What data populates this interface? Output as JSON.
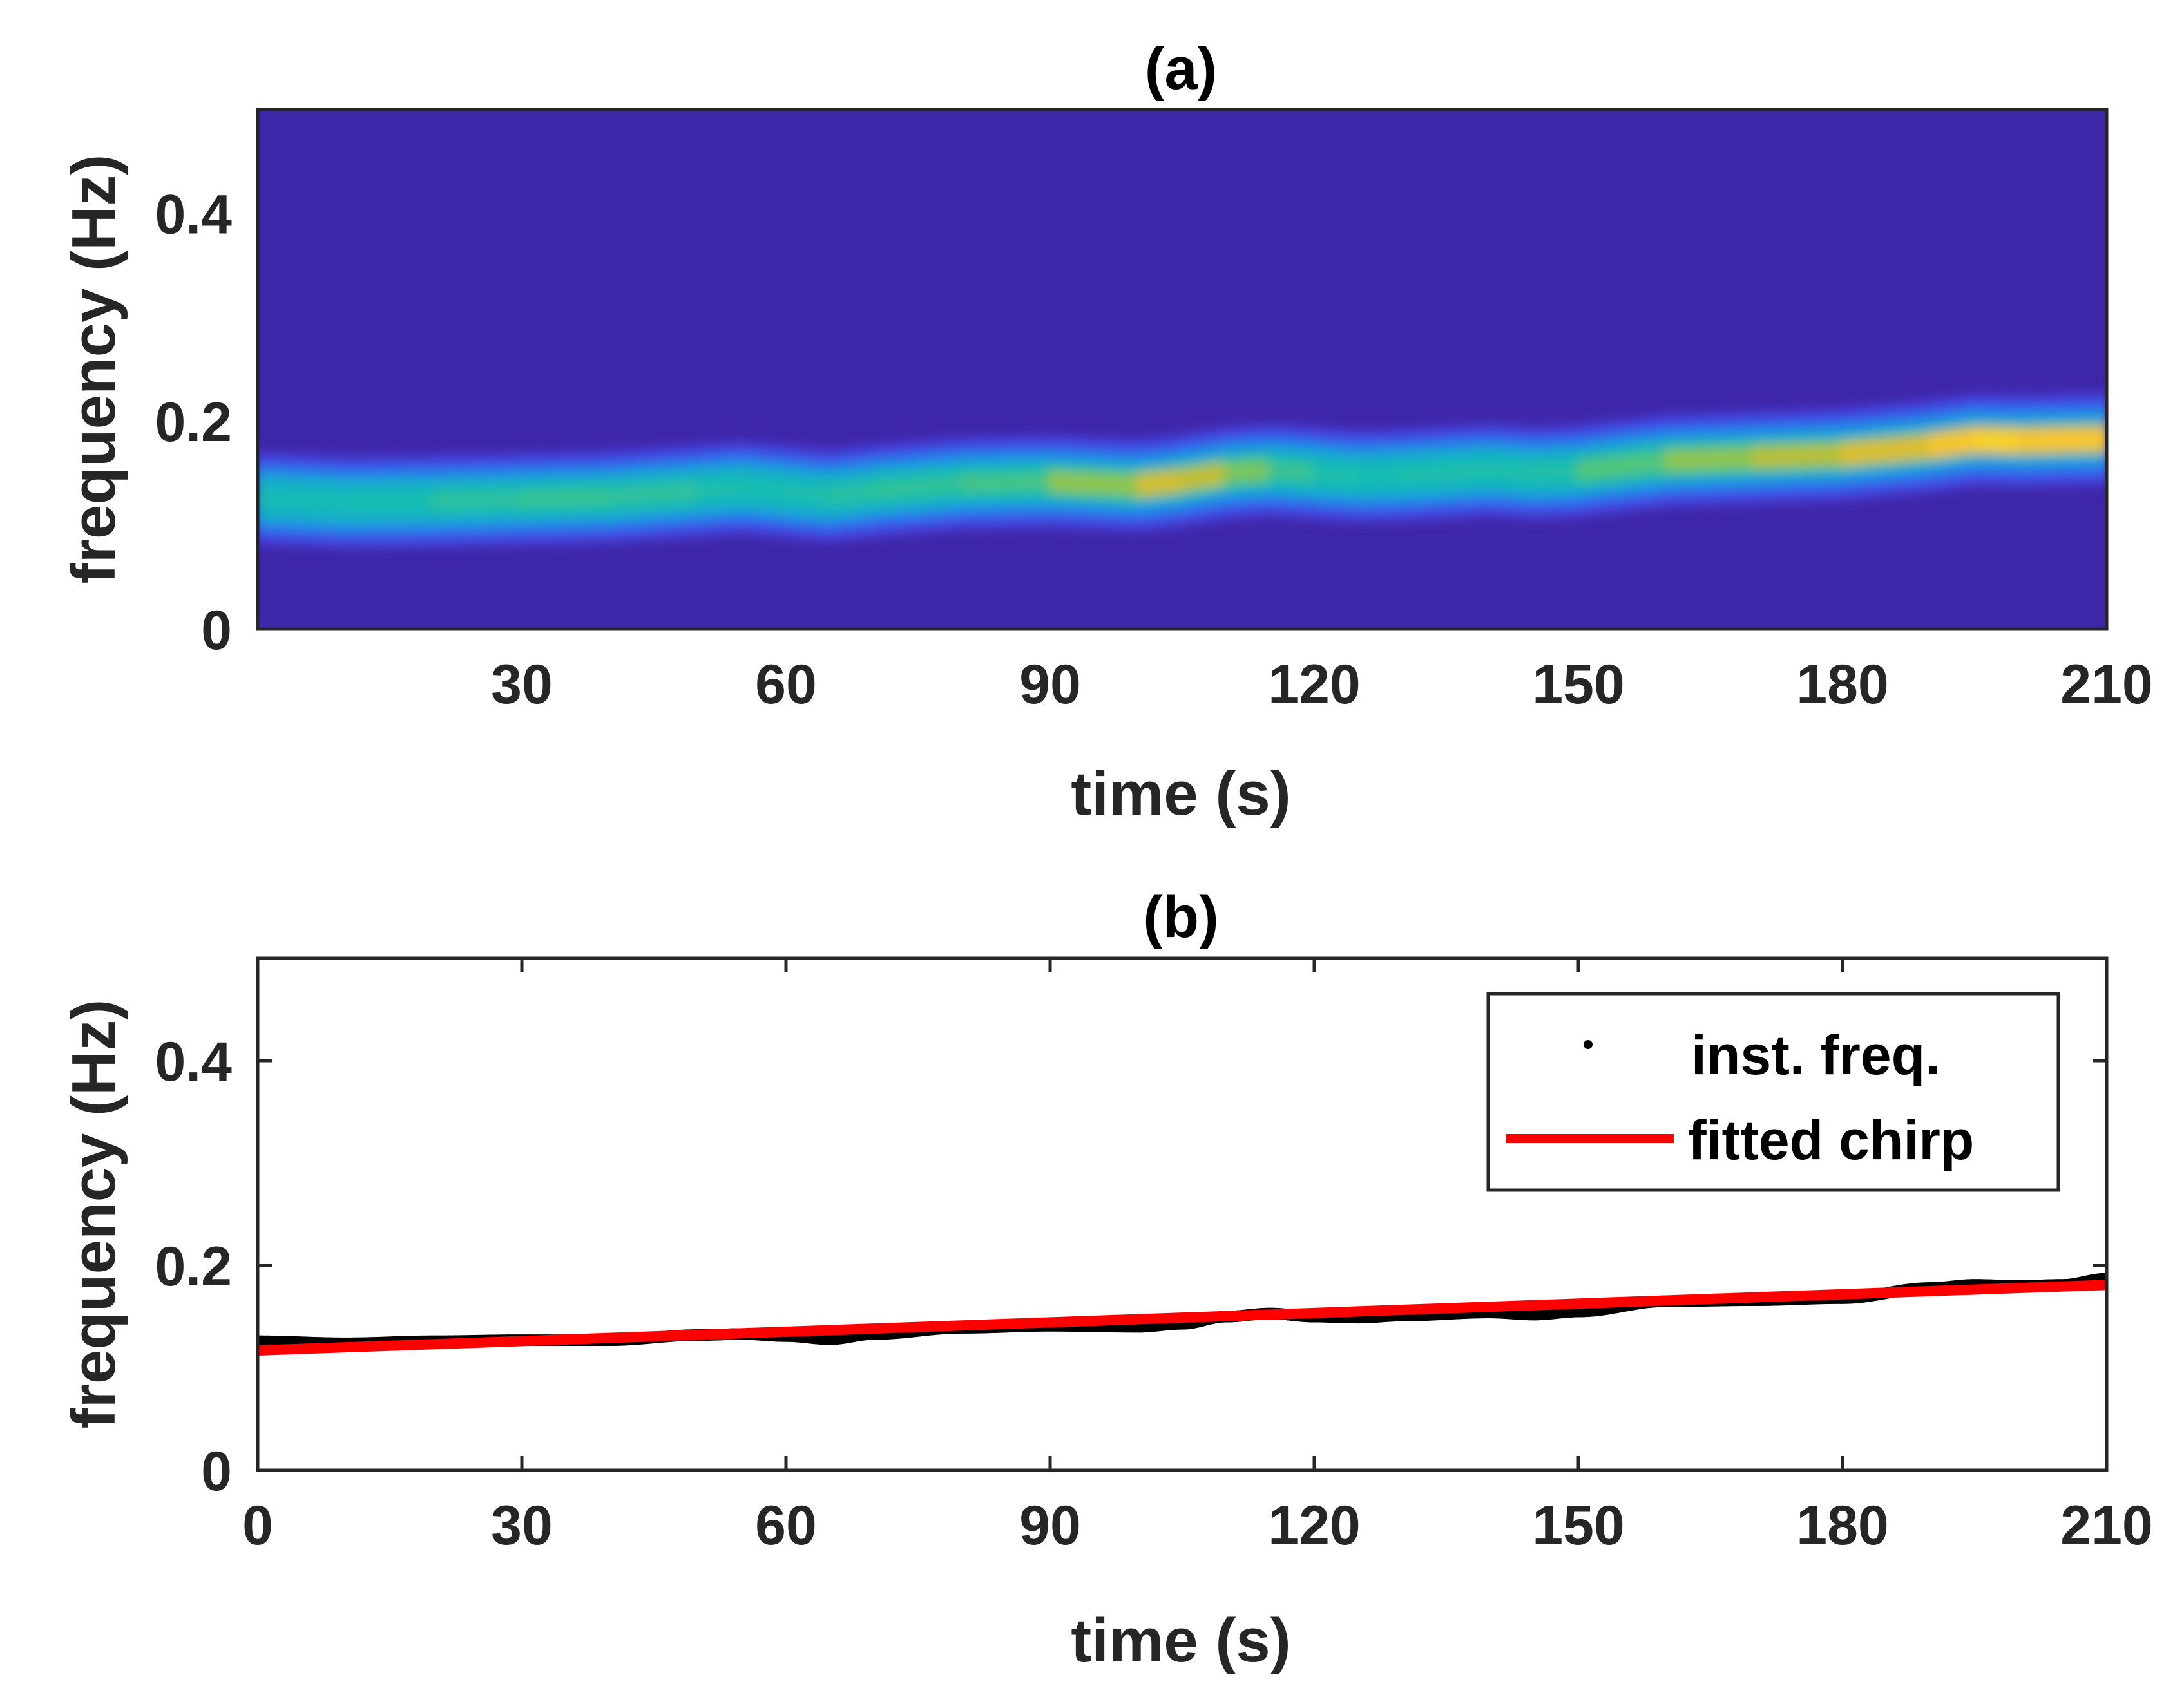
{
  "chart_data": [
    {
      "type": "heatmap",
      "title": "(a)",
      "xlabel": "time (s)",
      "ylabel": "frequency (Hz)",
      "xlim": [
        0,
        210
      ],
      "ylim": [
        0,
        0.5
      ],
      "xticks": [
        "30",
        "60",
        "90",
        "120",
        "150",
        "180",
        "210"
      ],
      "xtick_values": [
        30,
        60,
        90,
        120,
        150,
        180,
        210
      ],
      "yticks": [
        "0",
        "0.2",
        "0.4"
      ],
      "ytick_values": [
        0,
        0.2,
        0.4
      ],
      "colormap": "parula",
      "ridge": {
        "t": [
          0,
          10,
          20,
          30,
          40,
          50,
          55,
          60,
          65,
          70,
          80,
          90,
          100,
          105,
          110,
          115,
          120,
          125,
          130,
          140,
          145,
          150,
          160,
          170,
          180,
          190,
          195,
          200,
          210
        ],
        "freq": [
          0.126,
          0.122,
          0.123,
          0.125,
          0.127,
          0.133,
          0.136,
          0.132,
          0.128,
          0.133,
          0.14,
          0.142,
          0.138,
          0.143,
          0.15,
          0.153,
          0.15,
          0.147,
          0.148,
          0.153,
          0.15,
          0.152,
          0.162,
          0.165,
          0.168,
          0.176,
          0.182,
          0.181,
          0.183
        ],
        "intensity": [
          0.5,
          0.48,
          0.52,
          0.55,
          0.56,
          0.52,
          0.5,
          0.5,
          0.52,
          0.54,
          0.55,
          0.6,
          0.78,
          0.82,
          0.72,
          0.6,
          0.52,
          0.5,
          0.5,
          0.52,
          0.5,
          0.54,
          0.66,
          0.72,
          0.78,
          0.86,
          0.92,
          0.92,
          0.86
        ]
      },
      "background_color": "#3e26a8"
    },
    {
      "type": "line",
      "title": "(b)",
      "xlabel": "time (s)",
      "ylabel": "frequency (Hz)",
      "xlim": [
        0,
        210
      ],
      "ylim": [
        0,
        0.5
      ],
      "xticks": [
        "0",
        "30",
        "60",
        "90",
        "120",
        "150",
        "180",
        "210"
      ],
      "xtick_values": [
        0,
        30,
        60,
        90,
        120,
        150,
        180,
        210
      ],
      "yticks": [
        "0",
        "0.2",
        "0.4"
      ],
      "ytick_values": [
        0,
        0.2,
        0.4
      ],
      "legend_position": "top-right",
      "series": [
        {
          "name": "inst. freq.",
          "style": "dots",
          "color": "#000000",
          "x": [
            0,
            10,
            20,
            30,
            40,
            50,
            55,
            60,
            65,
            70,
            80,
            90,
            100,
            105,
            110,
            115,
            120,
            125,
            130,
            140,
            145,
            150,
            160,
            170,
            180,
            190,
            195,
            200,
            205,
            210
          ],
          "y": [
            0.126,
            0.124,
            0.126,
            0.127,
            0.127,
            0.132,
            0.133,
            0.131,
            0.128,
            0.133,
            0.139,
            0.141,
            0.14,
            0.143,
            0.15,
            0.153,
            0.15,
            0.149,
            0.151,
            0.154,
            0.152,
            0.155,
            0.165,
            0.166,
            0.168,
            0.178,
            0.181,
            0.18,
            0.181,
            0.187
          ]
        },
        {
          "name": "fitted chirp",
          "style": "line",
          "color": "#ff0000",
          "x": [
            0,
            210
          ],
          "y": [
            0.117,
            0.181
          ]
        }
      ]
    }
  ]
}
